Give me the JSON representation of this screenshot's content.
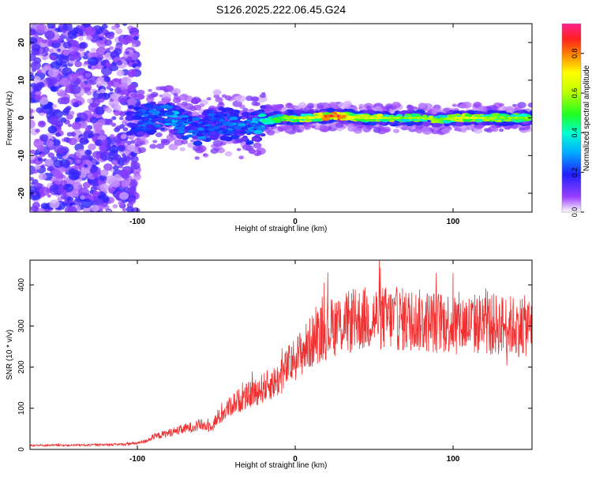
{
  "title": "S126.2025.222.06.45.G24",
  "chart_data": [
    {
      "type": "heatmap",
      "xlabel": "Height of straight line (km)",
      "ylabel": "Frequency (Hz)",
      "xlim": [
        -168,
        150
      ],
      "ylim": [
        -25,
        25
      ],
      "x_ticks": [
        -100,
        0,
        100
      ],
      "y_ticks": [
        -20,
        -10,
        0,
        10,
        20
      ],
      "colorbar": {
        "label": "Normalized spectral amplitude",
        "range": [
          0,
          0.95
        ],
        "ticks": [
          0.0,
          0.2,
          0.4,
          0.6,
          0.8
        ]
      },
      "description_ridge": {
        "x": [
          -100,
          -90,
          -80,
          -70,
          -60,
          -50,
          -40,
          -30,
          -20,
          -10,
          0,
          10,
          20,
          30,
          40,
          50,
          60,
          70,
          80,
          90,
          100,
          110,
          120,
          130,
          140,
          150
        ],
        "freq": [
          -1,
          0,
          1,
          -2,
          -3,
          -1,
          -2,
          -3,
          -1,
          0,
          0,
          0,
          0.5,
          0.5,
          0,
          0,
          0,
          0,
          0,
          -0.5,
          0,
          0,
          0,
          0,
          0,
          0
        ],
        "amplitude": [
          0.25,
          0.3,
          0.35,
          0.3,
          0.3,
          0.25,
          0.3,
          0.3,
          0.45,
          0.55,
          0.65,
          0.7,
          0.9,
          0.9,
          0.65,
          0.7,
          0.65,
          0.6,
          0.65,
          0.6,
          0.65,
          0.7,
          0.65,
          0.6,
          0.6,
          0.6
        ]
      }
    },
    {
      "type": "line",
      "xlabel": "Height of straight line (km)",
      "ylabel": "SNR (10 * v/v)",
      "xlim": [
        -168,
        150
      ],
      "ylim": [
        0,
        460
      ],
      "x_ticks": [
        -100,
        0,
        100
      ],
      "y_ticks": [
        0,
        100,
        200,
        300,
        400
      ],
      "color": "#f03030",
      "envelope": {
        "x": [
          -168,
          -140,
          -110,
          -100,
          -95,
          -90,
          -85,
          -80,
          -75,
          -70,
          -65,
          -60,
          -55,
          -50,
          -45,
          -40,
          -35,
          -30,
          -25,
          -20,
          -15,
          -10,
          -5,
          0,
          5,
          10,
          15,
          20,
          25,
          30,
          35,
          40,
          45,
          50,
          55,
          60,
          70,
          80,
          90,
          100,
          110,
          120,
          130,
          140,
          150
        ],
        "y": [
          10,
          10,
          12,
          15,
          20,
          30,
          35,
          40,
          45,
          50,
          55,
          60,
          55,
          70,
          90,
          110,
          120,
          130,
          140,
          150,
          160,
          170,
          200,
          220,
          240,
          260,
          280,
          290,
          300,
          305,
          310,
          315,
          318,
          320,
          320,
          318,
          315,
          312,
          310,
          308,
          305,
          305,
          303,
          300,
          300
        ]
      },
      "noise_amplitude": 0.25
    }
  ]
}
